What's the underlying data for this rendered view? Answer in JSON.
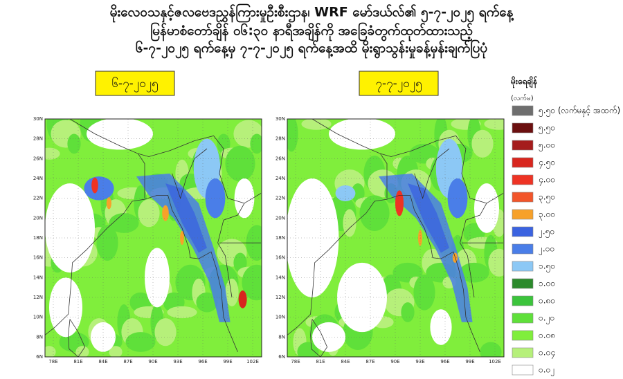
{
  "header": {
    "lines": [
      "မိုးလေဝသနှင့်ဇလဗေဒညွှန်ကြားမှုဦးစီးဌာန၊ WRF မော်ဒယ်လ်၏ ၅-၇-၂၀၂၅ ရက်နေ့",
      "မြန်မာစံတော်ချိန် ၀၆:၃၀ နာရီအချိန်ကို အခြေခံတွက်ထုတ်ထားသည့်",
      "၆-၇-၂၀၂၅ ရက်နေ့မှ ၇-၇-၂၀၂၅ ရက်နေ့အထိ မိုးရွာသွန်းမှုခန့်မှန်းချက်ပြပုံ"
    ]
  },
  "panels": [
    {
      "label": "၆-၇-၂၀၂၅"
    },
    {
      "label": "၇-၇-၂၀၂၅"
    }
  ],
  "map_axes": {
    "lat_labels": [
      "30N",
      "28N",
      "26N",
      "24N",
      "22N",
      "20N",
      "18N",
      "16N",
      "14N",
      "12N",
      "10N",
      "8N",
      "6N"
    ],
    "lon_labels": [
      "78E",
      "81E",
      "84E",
      "87E",
      "90E",
      "93E",
      "96E",
      "99E",
      "102E"
    ]
  },
  "legend": {
    "title": "မိုးရေချိန်",
    "unit": "(လက်မ)",
    "items": [
      {
        "label": "၅.၅၀ (လက်မနှင့် အထက်)",
        "color": "#6e6e6e"
      },
      {
        "label": "၅.၅၀",
        "color": "#6b0f0f"
      },
      {
        "label": "၅.၀၀",
        "color": "#a51c1c"
      },
      {
        "label": "၄.၅၀",
        "color": "#d8261e"
      },
      {
        "label": "၄.၀၀",
        "color": "#ee3324"
      },
      {
        "label": "၃.၅၀",
        "color": "#f2552a"
      },
      {
        "label": "၃.၀၀",
        "color": "#f7a12a"
      },
      {
        "label": "၂.၅၀",
        "color": "#3b63e0"
      },
      {
        "label": "၂.၀၀",
        "color": "#4a7ee8"
      },
      {
        "label": "၁.၅၀",
        "color": "#8cc8f5"
      },
      {
        "label": "၁.၀၀",
        "color": "#2c8a2c"
      },
      {
        "label": "၀.၈၀",
        "color": "#3cc43c"
      },
      {
        "label": "၀.၂၀",
        "color": "#5fe03a"
      },
      {
        "label": "၀.၀၈",
        "color": "#80ee3c"
      },
      {
        "label": "၀.၀၄",
        "color": "#b6f07a"
      },
      {
        "label": "၀.၀၂",
        "color": "#ffffff"
      }
    ]
  }
}
